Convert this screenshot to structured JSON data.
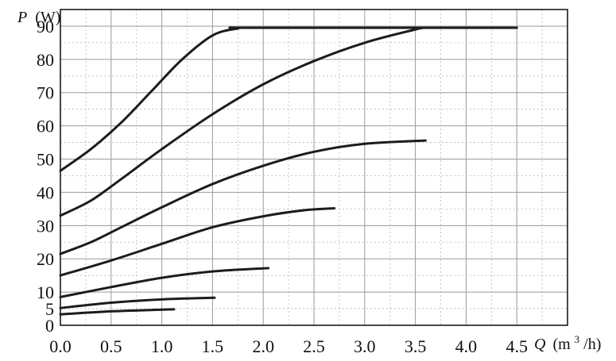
{
  "chart_data": {
    "type": "line",
    "x_axis": {
      "symbol": "Q",
      "unit_open": "(m",
      "unit_sup": "3",
      "unit_close": "/h)",
      "range": [
        0,
        5.0
      ],
      "ticks": [
        0.0,
        0.5,
        1.0,
        1.5,
        2.0,
        2.5,
        3.0,
        3.5,
        4.0,
        4.5
      ],
      "tick_labels": [
        "0.0",
        "0.5",
        "1.0",
        "1.5",
        "2.0",
        "2.5",
        "3.0",
        "3.5",
        "4.0",
        "4.5"
      ]
    },
    "y_axis": {
      "symbol": "P",
      "unit": "(W)",
      "range": [
        0,
        95
      ],
      "ticks": [
        0,
        5,
        10,
        20,
        30,
        40,
        50,
        60,
        70,
        80,
        90
      ],
      "tick_labels": [
        "0",
        "5",
        "10",
        "20",
        "30",
        "40",
        "50",
        "60",
        "70",
        "80",
        "90"
      ]
    },
    "grid": true,
    "color": "#1c1c1c",
    "series": [
      {
        "points": [
          [
            0.0,
            46.5
          ],
          [
            0.3,
            53
          ],
          [
            0.6,
            61
          ],
          [
            0.9,
            70.5
          ],
          [
            1.2,
            80
          ],
          [
            1.5,
            87.2
          ],
          [
            1.75,
            89.3
          ],
          [
            1.9,
            89.5
          ],
          [
            4.5,
            89.5
          ]
        ]
      },
      {
        "points": [
          [
            0.0,
            33
          ],
          [
            0.3,
            37.5
          ],
          [
            0.6,
            44
          ],
          [
            1.0,
            53
          ],
          [
            1.5,
            63.5
          ],
          [
            2.0,
            72.5
          ],
          [
            2.5,
            79.5
          ],
          [
            3.0,
            85
          ],
          [
            3.5,
            89
          ],
          [
            3.6,
            89.5
          ]
        ]
      },
      {
        "points": [
          [
            0.0,
            21.5
          ],
          [
            0.3,
            25
          ],
          [
            0.6,
            29.5
          ],
          [
            1.0,
            35.5
          ],
          [
            1.5,
            42.5
          ],
          [
            2.0,
            48
          ],
          [
            2.5,
            52.2
          ],
          [
            3.0,
            54.6
          ],
          [
            3.6,
            55.6
          ]
        ]
      },
      {
        "points": [
          [
            0.0,
            15
          ],
          [
            0.5,
            19.5
          ],
          [
            1.0,
            24.5
          ],
          [
            1.5,
            29.5
          ],
          [
            2.0,
            32.8
          ],
          [
            2.4,
            34.6
          ],
          [
            2.7,
            35.2
          ]
        ]
      },
      {
        "points": [
          [
            0.0,
            8.5
          ],
          [
            0.5,
            11.5
          ],
          [
            1.0,
            14.3
          ],
          [
            1.5,
            16.2
          ],
          [
            2.05,
            17.2
          ]
        ]
      },
      {
        "points": [
          [
            0.0,
            5.2
          ],
          [
            0.5,
            6.8
          ],
          [
            1.0,
            7.8
          ],
          [
            1.52,
            8.3
          ]
        ]
      },
      {
        "points": [
          [
            0.0,
            3.3
          ],
          [
            0.5,
            4.2
          ],
          [
            1.0,
            4.7
          ],
          [
            1.12,
            4.8
          ]
        ]
      }
    ]
  }
}
